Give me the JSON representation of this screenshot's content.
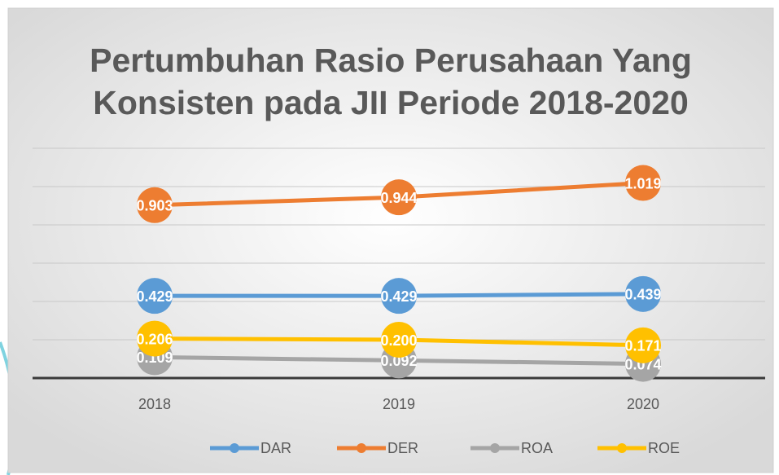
{
  "chart_data": {
    "type": "line",
    "title": "Pertumbuhan Rasio Perusahaan Yang Konsisten pada JII Periode 2018-2020",
    "categories": [
      "2018",
      "2019",
      "2020"
    ],
    "series": [
      {
        "name": "DAR",
        "color": "#5b9bd5",
        "values": [
          0.429,
          0.429,
          0.439
        ],
        "value_labels": [
          "0.429",
          "0.429",
          "0.439"
        ]
      },
      {
        "name": "DER",
        "color": "#ed7d31",
        "values": [
          0.903,
          0.944,
          1.019
        ],
        "value_labels": [
          "0.903",
          "0.944",
          "1.019"
        ]
      },
      {
        "name": "ROA",
        "color": "#a5a5a5",
        "values": [
          0.109,
          0.092,
          0.074
        ],
        "value_labels": [
          "0.109",
          "0.092",
          "0.074"
        ]
      },
      {
        "name": "ROE",
        "color": "#ffc000",
        "values": [
          0.206,
          0.2,
          0.171
        ],
        "value_labels": [
          "0.206",
          "0.200",
          "0.171"
        ]
      }
    ],
    "ylim": [
      0,
      1.2
    ],
    "yticks": [
      0,
      0.2,
      0.4,
      0.6,
      0.8,
      1,
      1.2
    ],
    "grid": true,
    "legend": "bottom"
  }
}
